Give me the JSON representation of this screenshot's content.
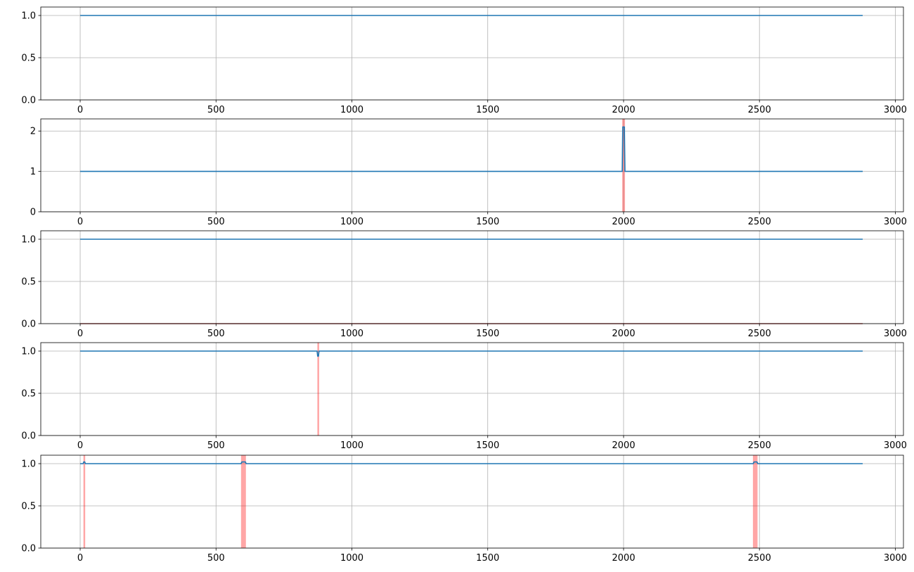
{
  "chart_data": [
    {
      "type": "line",
      "xlim": [
        -145,
        3030
      ],
      "ylim": [
        0,
        1.1
      ],
      "x_ticks": [
        0,
        500,
        1000,
        1500,
        2000,
        2500,
        3000
      ],
      "x_tick_labels": [
        "0",
        "500",
        "1000",
        "1500",
        "2000",
        "2500",
        "3000"
      ],
      "y_ticks": [
        0,
        0.5,
        1
      ],
      "y_tick_labels": [
        "0.0",
        "0.5",
        "1.0"
      ],
      "grid": true,
      "line_color": "#1f77b4",
      "series": [
        {
          "x": [
            0,
            2880
          ],
          "y": [
            1,
            1
          ]
        }
      ],
      "highlight_color": "#ff0000",
      "highlights": []
    },
    {
      "type": "line",
      "xlim": [
        -145,
        3030
      ],
      "ylim": [
        0,
        2.3
      ],
      "x_ticks": [
        0,
        500,
        1000,
        1500,
        2000,
        2500,
        3000
      ],
      "x_tick_labels": [
        "0",
        "500",
        "1000",
        "1500",
        "2000",
        "2500",
        "3000"
      ],
      "y_ticks": [
        0,
        1,
        2
      ],
      "y_tick_labels": [
        "0",
        "1",
        "2"
      ],
      "grid": true,
      "line_color": "#1f77b4",
      "series": [
        {
          "x": [
            0,
            1995,
            1997,
            2003,
            2005,
            2880
          ],
          "y": [
            1,
            1,
            2.1,
            2.1,
            1,
            1
          ]
        }
      ],
      "highlight_color": "#ff0000",
      "highlights": [
        [
          1995,
          2005
        ]
      ]
    },
    {
      "type": "line",
      "xlim": [
        -145,
        3030
      ],
      "ylim": [
        0,
        1.1
      ],
      "x_ticks": [
        0,
        500,
        1000,
        1500,
        2000,
        2500,
        3000
      ],
      "x_tick_labels": [
        "0",
        "500",
        "1000",
        "1500",
        "2000",
        "2500",
        "3000"
      ],
      "y_ticks": [
        0,
        0.5,
        1
      ],
      "y_tick_labels": [
        "0.0",
        "0.5",
        "1.0"
      ],
      "grid": true,
      "line_color": "#1f77b4",
      "series": [
        {
          "x": [
            0,
            2880
          ],
          "y": [
            1,
            1
          ]
        }
      ],
      "highlight_color": "#ff0000",
      "highlights": [],
      "baseline": {
        "x": [
          0,
          2880
        ],
        "y": [
          0,
          0
        ],
        "color": "#8b0000"
      }
    },
    {
      "type": "line",
      "xlim": [
        -145,
        3030
      ],
      "ylim": [
        0,
        1.1
      ],
      "x_ticks": [
        0,
        500,
        1000,
        1500,
        2000,
        2500,
        3000
      ],
      "x_tick_labels": [
        "0",
        "500",
        "1000",
        "1500",
        "2000",
        "2500",
        "3000"
      ],
      "y_ticks": [
        0,
        0.5,
        1
      ],
      "y_tick_labels": [
        "0.0",
        "0.5",
        "1.0"
      ],
      "grid": true,
      "line_color": "#1f77b4",
      "series": [
        {
          "x": [
            0,
            872,
            874,
            877,
            879,
            2880
          ],
          "y": [
            1,
            1,
            0.94,
            0.94,
            1,
            1
          ]
        }
      ],
      "highlight_color": "#ff0000",
      "highlights": [
        [
          873,
          878
        ]
      ]
    },
    {
      "type": "line",
      "xlim": [
        -145,
        3030
      ],
      "ylim": [
        0,
        1.1
      ],
      "x_ticks": [
        0,
        500,
        1000,
        1500,
        2000,
        2500,
        3000
      ],
      "x_tick_labels": [
        "0",
        "500",
        "1000",
        "1500",
        "2000",
        "2500",
        "3000"
      ],
      "y_ticks": [
        0,
        0.5,
        1
      ],
      "y_tick_labels": [
        "0.0",
        "0.5",
        "1.0"
      ],
      "grid": true,
      "line_color": "#1f77b4",
      "series": [
        {
          "x": [
            0,
            11,
            13,
            17,
            19,
            592,
            595,
            608,
            611,
            2477,
            2480,
            2491,
            2494,
            2880
          ],
          "y": [
            1,
            1,
            1.02,
            1.02,
            1,
            1,
            1.02,
            1.02,
            1,
            1,
            1.02,
            1.02,
            1,
            1
          ]
        }
      ],
      "highlight_color": "#ff0000",
      "highlights": [
        [
          12,
          18
        ],
        [
          592,
          610
        ],
        [
          2476,
          2493
        ]
      ]
    }
  ]
}
